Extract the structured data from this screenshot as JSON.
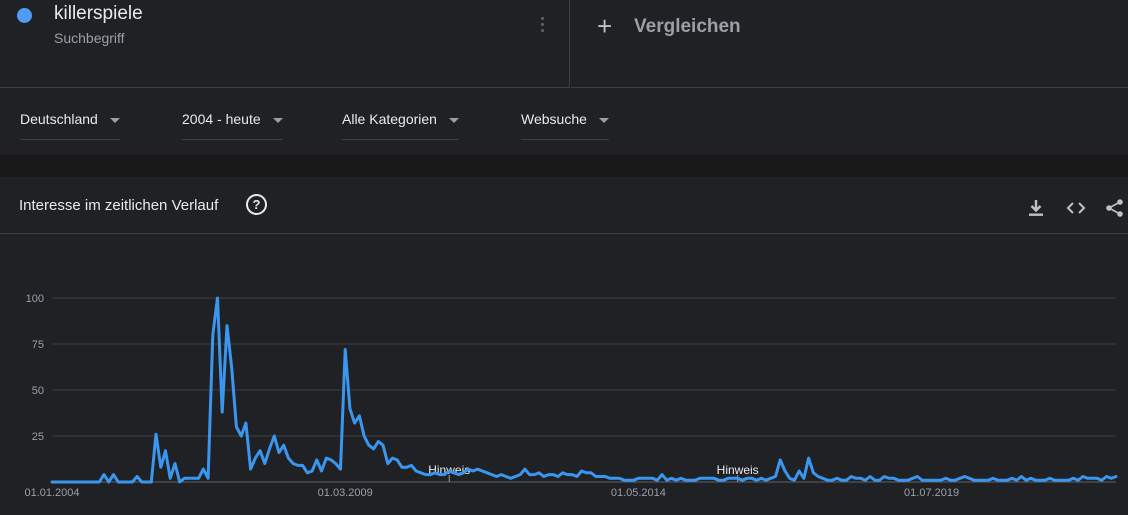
{
  "term": {
    "name": "killerspiele",
    "subtitle": "Suchbegriff",
    "color": "#4e9cf5"
  },
  "compare": {
    "label": "Vergleichen",
    "icon": "plus-icon"
  },
  "filters": [
    {
      "id": "region",
      "label": "Deutschland"
    },
    {
      "id": "time",
      "label": "2004 - heute"
    },
    {
      "id": "category",
      "label": "Alle Kategorien"
    },
    {
      "id": "search_type",
      "label": "Websuche"
    }
  ],
  "panel": {
    "title": "Interesse im zeitlichen Verlauf",
    "icons": [
      "help-icon",
      "download-icon",
      "embed-icon",
      "share-icon"
    ]
  },
  "chart_data": {
    "type": "line",
    "title": "",
    "xlabel": "",
    "ylabel": "",
    "ylim": [
      0,
      100
    ],
    "yticks": [
      25,
      50,
      75,
      100
    ],
    "xtick_labels": [
      "01.01.2004",
      "01.03.2009",
      "01.05.2014",
      "01.07.2019"
    ],
    "xtick_positions_months": [
      0,
      62,
      124,
      186
    ],
    "annotations": [
      {
        "label": "Hinweis",
        "month": 84
      },
      {
        "label": "Hinweis",
        "month": 145
      }
    ],
    "line_color": "#3a96ee",
    "grid": true,
    "start": "2004-01",
    "end": "2025-01",
    "series": [
      {
        "name": "killerspiele",
        "values": [
          0,
          0,
          0,
          0,
          0,
          0,
          0,
          0,
          0,
          0,
          0,
          4,
          0,
          4,
          0,
          0,
          0,
          0,
          3,
          0,
          0,
          0,
          26,
          8,
          17,
          2,
          10,
          0,
          2,
          2,
          2,
          2,
          7,
          2,
          80,
          100,
          38,
          85,
          62,
          30,
          25,
          32,
          7,
          13,
          17,
          10,
          18,
          25,
          16,
          20,
          13,
          10,
          9,
          9,
          5,
          6,
          12,
          6,
          13,
          12,
          10,
          7,
          72,
          40,
          32,
          36,
          25,
          20,
          18,
          22,
          20,
          10,
          13,
          12,
          8,
          8,
          9,
          6,
          5,
          4,
          4,
          5,
          4,
          4,
          6,
          5,
          4,
          5,
          7,
          6,
          7,
          6,
          5,
          4,
          3,
          4,
          3,
          2,
          3,
          4,
          7,
          4,
          4,
          5,
          3,
          4,
          4,
          3,
          5,
          4,
          4,
          3,
          6,
          5,
          5,
          3,
          3,
          3,
          2,
          2,
          2,
          1,
          1,
          1,
          2,
          2,
          2,
          2,
          1,
          4,
          1,
          2,
          1,
          2,
          1,
          1,
          1,
          2,
          2,
          2,
          2,
          1,
          1,
          2,
          2,
          2,
          1,
          2,
          2,
          1,
          2,
          1,
          2,
          3,
          12,
          6,
          2,
          1,
          6,
          2,
          13,
          5,
          3,
          2,
          1,
          1,
          2,
          1,
          1,
          3,
          2,
          2,
          1,
          3,
          1,
          1,
          3,
          2,
          2,
          1,
          1,
          1,
          2,
          3,
          1,
          1,
          1,
          1,
          1,
          2,
          1,
          1,
          2,
          3,
          2,
          1,
          1,
          1,
          1,
          2,
          1,
          1,
          1,
          2,
          1,
          3,
          1,
          2,
          1,
          1,
          1,
          2,
          1,
          1,
          1,
          1,
          2,
          1,
          3,
          2,
          2,
          2,
          1,
          3,
          2,
          3
        ]
      }
    ]
  }
}
